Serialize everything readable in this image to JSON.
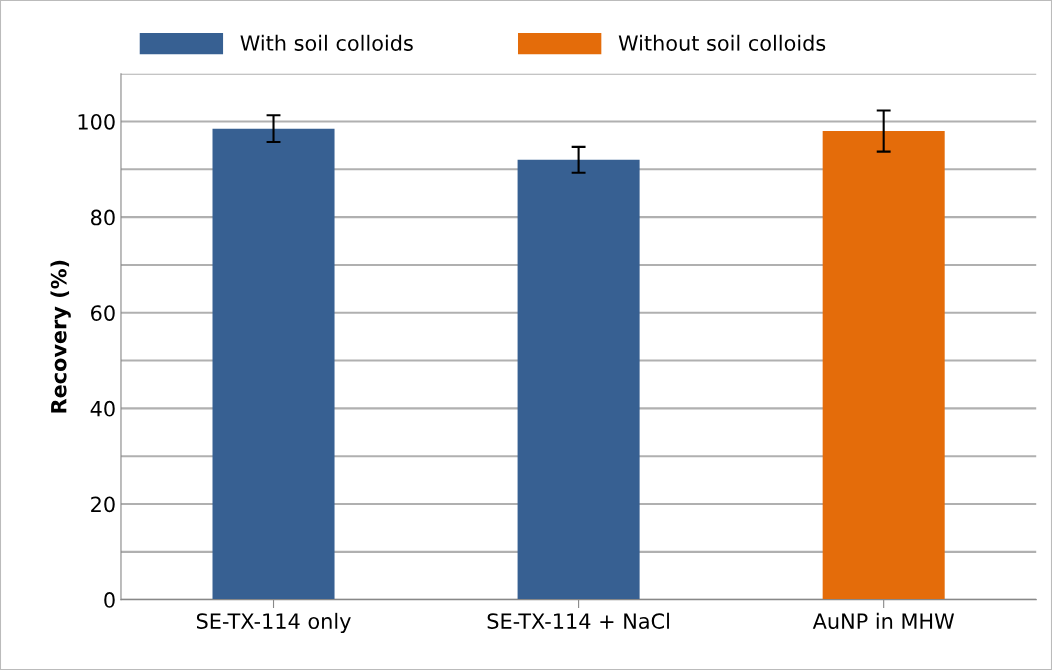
{
  "chart_data": {
    "type": "bar",
    "ylabel": "Recovery (%)",
    "categories": [
      "SE-TX-114 only",
      "SE-TX-114 + NaCl",
      "AuNP in MHW"
    ],
    "series": [
      {
        "name": "With soil colloids",
        "color": "#376092",
        "values": [
          98.5,
          92.0,
          null
        ],
        "errors": [
          2.8,
          2.7,
          null
        ]
      },
      {
        "name": "Without soil colloids",
        "color": "#e46c0a",
        "values": [
          null,
          null,
          98.0
        ],
        "errors": [
          null,
          null,
          4.3
        ]
      }
    ],
    "ylim": [
      0,
      110
    ],
    "yticks": [
      0,
      {
        "value": 10,
        "label": null
      },
      20,
      {
        "value": 30,
        "label": null
      },
      40,
      {
        "value": 50,
        "label": null
      },
      60,
      {
        "value": 70,
        "label": null
      },
      80,
      {
        "value": 90,
        "label": null
      },
      100,
      {
        "value": 110,
        "label": null
      }
    ],
    "grid": "y",
    "legend": "top"
  }
}
